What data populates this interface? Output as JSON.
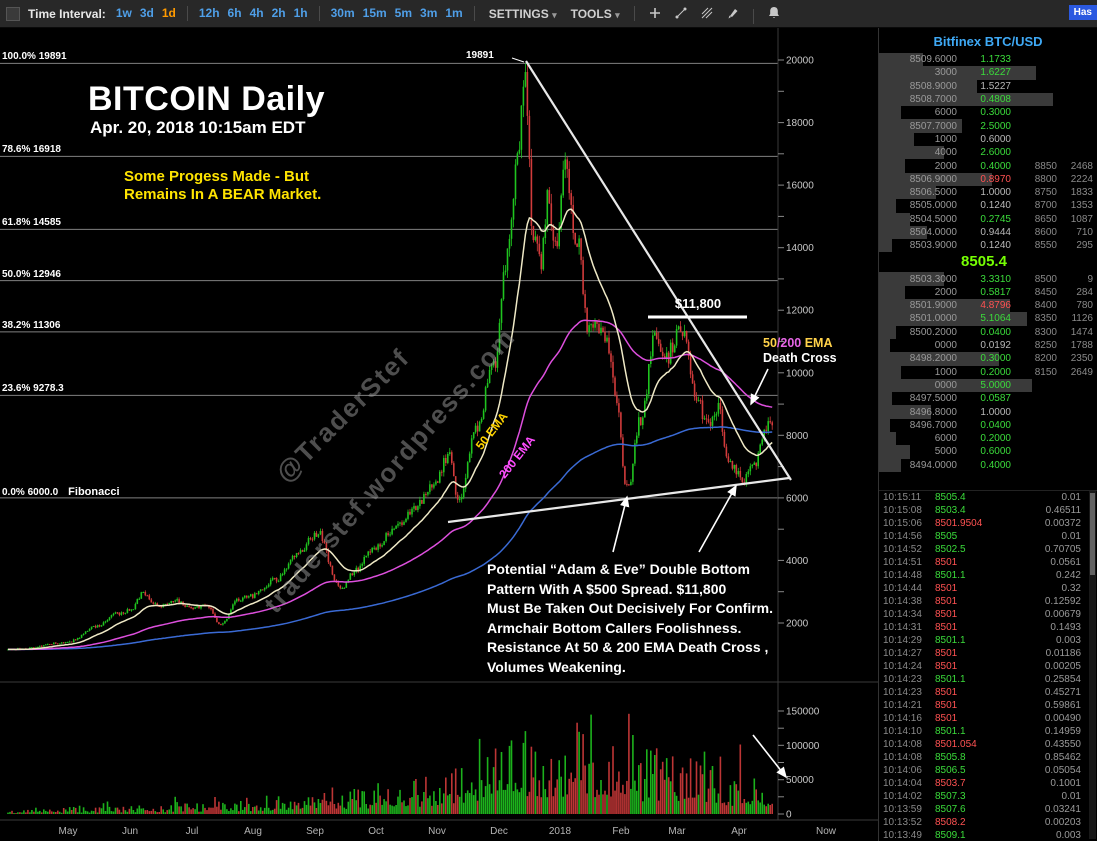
{
  "toolbar": {
    "time_interval_label": "Time Interval:",
    "intervals": [
      "1w",
      "3d",
      "1d",
      "12h",
      "6h",
      "4h",
      "2h",
      "1h",
      "30m",
      "15m",
      "5m",
      "3m",
      "1m"
    ],
    "active_interval": "1d",
    "settings_label": "SETTINGS",
    "tools_label": "TOOLS",
    "caret": "▾",
    "icons": [
      "plus-icon",
      "trendline-icon",
      "multi-line-icon",
      "brush-icon",
      "bell-icon"
    ],
    "hash_badge": "Has"
  },
  "chart": {
    "title": "BITCOIN Daily",
    "subtitle": "Apr. 20, 2018 10:15am EDT",
    "note": "Some Progess Made - But\nRemains In A BEAR Market.",
    "peak_label": "19891",
    "resistance_label": "$11,800",
    "death_cross": {
      "part1": "50",
      "part2": "/200",
      "part3": " EMA",
      "line2": "Death Cross"
    },
    "ema50_label": "50 EMA",
    "ema200_label": "200 EMA",
    "watermark_handle": "@TraderStef",
    "watermark_url": "traderstef.wordpress.com",
    "annotation": "Potential “Adam & Eve” Double Bottom\nPattern With A $500 Spread.  $11,800\nMust Be Taken Out Decisively For Confirm.\nArmchair Bottom Callers Foolishness.\nResistance At 50 & 200 EMA Death Cross ,\nVolumes Weakening.",
    "fib_levels": [
      {
        "label": "100.0% 19891",
        "price": 19891
      },
      {
        "label": "78.6% 16918",
        "price": 16918
      },
      {
        "label": "61.8% 14585",
        "price": 14585
      },
      {
        "label": "50.0% 12946",
        "price": 12946
      },
      {
        "label": "38.2% 11306",
        "price": 11306
      },
      {
        "label": "23.6% 9278.3",
        "price": 9278.3
      },
      {
        "label": "0.0% 6000.0",
        "price": 6000,
        "tool": "Fibonacci"
      }
    ],
    "price_ticks": [
      20000,
      18000,
      16000,
      14000,
      12000,
      10000,
      8000,
      6000,
      4000,
      2000
    ],
    "volume_ticks": [
      150000,
      100000,
      50000,
      0
    ],
    "months": [
      "May",
      "Jun",
      "Jul",
      "Aug",
      "Sep",
      "Oct",
      "Nov",
      "Dec",
      "2018",
      "Feb",
      "Mar",
      "Apr",
      "Now"
    ]
  },
  "chart_data": {
    "type": "candlestick",
    "title": "BITCOIN Daily",
    "ylim": [
      1000,
      20500
    ],
    "price_resistance": 11800,
    "all_time_high": 19891,
    "last_price": 8505.4,
    "fib_range": [
      6000,
      19891
    ],
    "ema_lines": [
      {
        "label": "50 EMA",
        "color": "#efe9c6",
        "period": 21
      },
      {
        "label": "200 EMA",
        "color": "#dd4fdd",
        "period": 90
      },
      {
        "label": "slow-ema",
        "color": "#3a6ad4",
        "period": 260
      }
    ],
    "waypoints": [
      [
        0,
        1150
      ],
      [
        10,
        1200
      ],
      [
        25,
        1350
      ],
      [
        30,
        1400
      ],
      [
        45,
        1900
      ],
      [
        55,
        2300
      ],
      [
        61,
        2400
      ],
      [
        68,
        2950
      ],
      [
        75,
        2550
      ],
      [
        85,
        2700
      ],
      [
        91,
        2500
      ],
      [
        100,
        2550
      ],
      [
        107,
        1950
      ],
      [
        115,
        2750
      ],
      [
        122,
        2850
      ],
      [
        135,
        3400
      ],
      [
        145,
        4150
      ],
      [
        153,
        4750
      ],
      [
        156,
        4900
      ],
      [
        167,
        3100
      ],
      [
        175,
        3700
      ],
      [
        183,
        4350
      ],
      [
        195,
        5050
      ],
      [
        205,
        5700
      ],
      [
        214,
        6500
      ],
      [
        222,
        7400
      ],
      [
        226,
        5900
      ],
      [
        235,
        8200
      ],
      [
        244,
        10200
      ],
      [
        251,
        13700
      ],
      [
        256,
        16900
      ],
      [
        260,
        19500
      ],
      [
        264,
        14300
      ],
      [
        268,
        13600
      ],
      [
        271,
        15600
      ],
      [
        275,
        13900
      ],
      [
        280,
        16800
      ],
      [
        286,
        14200
      ],
      [
        292,
        11300
      ],
      [
        296,
        11600
      ],
      [
        301,
        10900
      ],
      [
        306,
        9200
      ],
      [
        311,
        6300
      ],
      [
        318,
        8500
      ],
      [
        325,
        11300
      ],
      [
        331,
        10400
      ],
      [
        334,
        10900
      ],
      [
        338,
        11500
      ],
      [
        346,
        9200
      ],
      [
        352,
        8300
      ],
      [
        357,
        8950
      ],
      [
        362,
        7100
      ],
      [
        365,
        6950
      ],
      [
        370,
        6600
      ],
      [
        375,
        7050
      ],
      [
        379,
        8000
      ],
      [
        384,
        8505
      ]
    ],
    "volume_waypoints": [
      [
        0,
        5000
      ],
      [
        60,
        9000
      ],
      [
        120,
        16000
      ],
      [
        160,
        22000
      ],
      [
        200,
        38000
      ],
      [
        230,
        60000
      ],
      [
        245,
        90000
      ],
      [
        256,
        115000
      ],
      [
        262,
        95000
      ],
      [
        275,
        85000
      ],
      [
        290,
        95000
      ],
      [
        306,
        90000
      ],
      [
        312,
        105000
      ],
      [
        320,
        70000
      ],
      [
        330,
        62000
      ],
      [
        340,
        78000
      ],
      [
        350,
        58000
      ],
      [
        365,
        45000
      ],
      [
        375,
        52000
      ],
      [
        384,
        28000
      ]
    ]
  },
  "panel": {
    "title": "Bitfinex BTC/USD",
    "last_price": "8505.4",
    "asks": [
      {
        "p": "8509.6000",
        "a": "1.1733",
        "c": "g",
        "d": 20
      },
      {
        "p": "3000",
        "a": "1.6227",
        "c": "g",
        "d": 72
      },
      {
        "p": "8508.9000",
        "a": "1.5227",
        "c": "w",
        "d": 45
      },
      {
        "p": "8508.7000",
        "a": "0.4808",
        "c": "g",
        "d": 80
      },
      {
        "p": "6000",
        "a": "0.3000",
        "c": "g",
        "d": 10
      },
      {
        "p": "8507.7000",
        "a": "2.5000",
        "c": "g",
        "d": 38
      },
      {
        "p": "1000",
        "a": "0.6000",
        "c": "w",
        "d": 16
      },
      {
        "p": "4000",
        "a": "2.6000",
        "c": "g",
        "d": 30
      },
      {
        "p": "2000",
        "a": "0.4000",
        "c": "g",
        "d": 12,
        "gp": "8850",
        "ga": "2468"
      },
      {
        "p": "8506.9000",
        "a": "0.8970",
        "c": "r",
        "d": 52,
        "gp": "8800",
        "ga": "2224"
      },
      {
        "p": "8506.5000",
        "a": "1.0000",
        "c": "w",
        "d": 26,
        "gp": "8750",
        "ga": "1833"
      },
      {
        "p": "8505.0000",
        "a": "0.1240",
        "c": "w",
        "d": 8,
        "gp": "8700",
        "ga": "1353"
      },
      {
        "p": "8504.5000",
        "a": "0.2745",
        "c": "g",
        "d": 14,
        "gp": "8650",
        "ga": "1087"
      },
      {
        "p": "8504.0000",
        "a": "0.9444",
        "c": "w",
        "d": 22,
        "gp": "8600",
        "ga": "710"
      },
      {
        "p": "8503.9000",
        "a": "0.1240",
        "c": "w",
        "d": 6,
        "gp": "8550",
        "ga": "295"
      }
    ],
    "bids": [
      {
        "p": "8503.3000",
        "a": "3.3310",
        "c": "g",
        "d": 30,
        "gp": "8500",
        "ga": "9"
      },
      {
        "p": "2000",
        "a": "0.5817",
        "c": "g",
        "d": 12,
        "gp": "8450",
        "ga": "284"
      },
      {
        "p": "8501.9000",
        "a": "4.8796",
        "c": "r",
        "d": 60,
        "gp": "8400",
        "ga": "780"
      },
      {
        "p": "8501.0000",
        "a": "5.1064",
        "c": "g",
        "d": 68,
        "gp": "8350",
        "ga": "1126"
      },
      {
        "p": "8500.2000",
        "a": "0.0400",
        "c": "g",
        "d": 8,
        "gp": "8300",
        "ga": "1474"
      },
      {
        "p": "0000",
        "a": "0.0192",
        "c": "w",
        "d": 5,
        "gp": "8250",
        "ga": "1788"
      },
      {
        "p": "8498.2000",
        "a": "0.3000",
        "c": "g",
        "d": 55,
        "gp": "8200",
        "ga": "2350"
      },
      {
        "p": "1000",
        "a": "0.2000",
        "c": "g",
        "d": 10,
        "gp": "8150",
        "ga": "2649"
      },
      {
        "p": "0000",
        "a": "5.0000",
        "c": "g",
        "d": 70
      },
      {
        "p": "8497.5000",
        "a": "0.0587",
        "c": "g",
        "d": 6
      },
      {
        "p": "8496.8000",
        "a": "1.0000",
        "c": "w",
        "d": 24
      },
      {
        "p": "8496.7000",
        "a": "0.0400",
        "c": "g",
        "d": 5
      },
      {
        "p": "6000",
        "a": "0.2000",
        "c": "g",
        "d": 8
      },
      {
        "p": "5000",
        "a": "0.6000",
        "c": "g",
        "d": 14
      },
      {
        "p": "8494.0000",
        "a": "0.4000",
        "c": "g",
        "d": 10
      }
    ],
    "trades": [
      {
        "t": "10:15:11",
        "p": "8505.4",
        "a": "0.01",
        "c": "g"
      },
      {
        "t": "10:15:08",
        "p": "8503.4",
        "a": "0.46511",
        "c": "g"
      },
      {
        "t": "10:15:06",
        "p": "8501.9504",
        "a": "0.00372",
        "c": "r"
      },
      {
        "t": "10:14:56",
        "p": "8505",
        "a": "0.01",
        "c": "g"
      },
      {
        "t": "10:14:52",
        "p": "8502.5",
        "a": "0.70705",
        "c": "g"
      },
      {
        "t": "10:14:51",
        "p": "8501",
        "a": "0.0561",
        "c": "r"
      },
      {
        "t": "10:14:48",
        "p": "8501.1",
        "a": "0.242",
        "c": "g"
      },
      {
        "t": "10:14:44",
        "p": "8501",
        "a": "0.32",
        "c": "r"
      },
      {
        "t": "10:14:38",
        "p": "8501",
        "a": "0.12592",
        "c": "r"
      },
      {
        "t": "10:14:34",
        "p": "8501",
        "a": "0.00679",
        "c": "r"
      },
      {
        "t": "10:14:31",
        "p": "8501",
        "a": "0.1493",
        "c": "r"
      },
      {
        "t": "10:14:29",
        "p": "8501.1",
        "a": "0.003",
        "c": "g"
      },
      {
        "t": "10:14:27",
        "p": "8501",
        "a": "0.01186",
        "c": "r"
      },
      {
        "t": "10:14:24",
        "p": "8501",
        "a": "0.00205",
        "c": "r"
      },
      {
        "t": "10:14:23",
        "p": "8501.1",
        "a": "0.25854",
        "c": "g"
      },
      {
        "t": "10:14:23",
        "p": "8501",
        "a": "0.45271",
        "c": "r"
      },
      {
        "t": "10:14:21",
        "p": "8501",
        "a": "0.59861",
        "c": "r"
      },
      {
        "t": "10:14:16",
        "p": "8501",
        "a": "0.00490",
        "c": "r"
      },
      {
        "t": "10:14:10",
        "p": "8501.1",
        "a": "0.14959",
        "c": "g"
      },
      {
        "t": "10:14:08",
        "p": "8501.054",
        "a": "0.43550",
        "c": "r"
      },
      {
        "t": "10:14:08",
        "p": "8505.8",
        "a": "0.85462",
        "c": "g"
      },
      {
        "t": "10:14:06",
        "p": "8506.5",
        "a": "0.05054",
        "c": "g"
      },
      {
        "t": "10:14:04",
        "p": "8503.7",
        "a": "0.1001",
        "c": "r"
      },
      {
        "t": "10:14:02",
        "p": "8507.3",
        "a": "0.01",
        "c": "g"
      },
      {
        "t": "10:13:59",
        "p": "8507.6",
        "a": "0.03241",
        "c": "g"
      },
      {
        "t": "10:13:52",
        "p": "8508.2",
        "a": "0.00203",
        "c": "r"
      },
      {
        "t": "10:13:49",
        "p": "8509.1",
        "a": "0.003",
        "c": "g"
      }
    ]
  }
}
